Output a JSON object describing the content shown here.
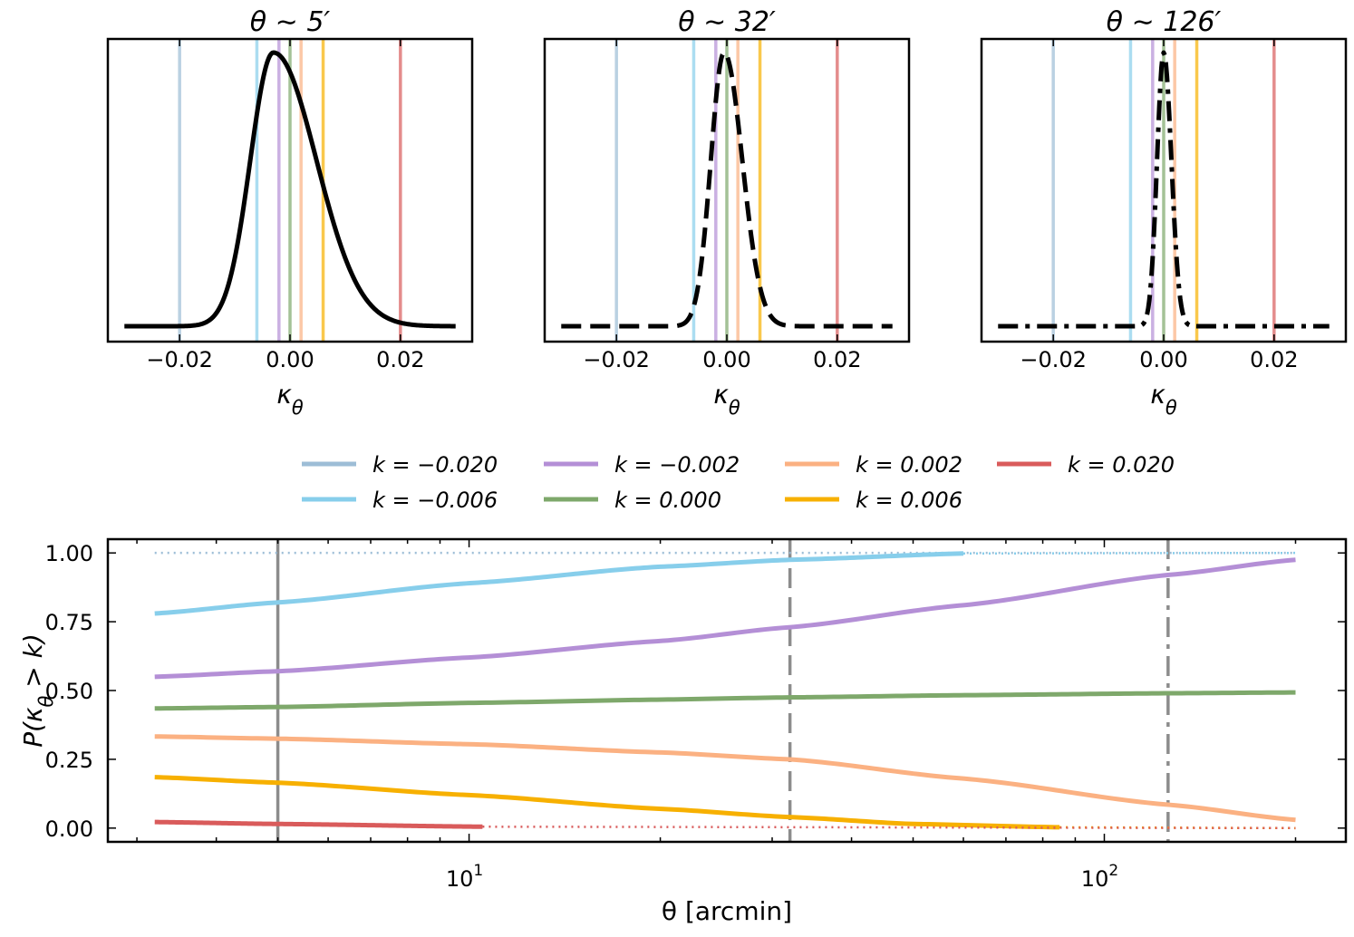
{
  "colors": {
    "k_m0.020": "#9dbdd6",
    "k_m0.006": "#87ceeb",
    "k_m0.002": "#b48fd6",
    "k_0.000": "#7ea86b",
    "k_0.002": "#fbb182",
    "k_0.006": "#f7b000",
    "k_0.020": "#d95b5b",
    "pdf_line": "#000000",
    "ref_line": "#8c8c8c"
  },
  "chart_data": [
    {
      "type": "line",
      "title": "θ ∼ 5′",
      "xlabel": "κ_θ",
      "ylabel": "",
      "xlim": [
        -0.033,
        0.033
      ],
      "xticks": [
        -0.02,
        0.0,
        0.02
      ],
      "xtick_labels": [
        "−0.02",
        "0.00",
        "0.02"
      ],
      "line_style": "solid",
      "pdf": {
        "mode": -0.003,
        "sigma_left": 0.0042,
        "sigma_right": 0.0078,
        "x_range": [
          -0.03,
          0.03
        ]
      },
      "vlines": [
        -0.02,
        -0.006,
        -0.002,
        0.0,
        0.002,
        0.006,
        0.02
      ]
    },
    {
      "type": "line",
      "title": "θ ∼ 32′",
      "xlabel": "κ_θ",
      "ylabel": "",
      "xlim": [
        -0.033,
        0.033
      ],
      "xticks": [
        -0.02,
        0.0,
        0.02
      ],
      "xtick_labels": [
        "−0.02",
        "0.00",
        "0.02"
      ],
      "line_style": "dashed",
      "pdf": {
        "mode": -0.0005,
        "sigma_left": 0.0024,
        "sigma_right": 0.0033,
        "x_range": [
          -0.03,
          0.03
        ]
      },
      "vlines": [
        -0.02,
        -0.006,
        -0.002,
        0.0,
        0.002,
        0.006,
        0.02
      ]
    },
    {
      "type": "line",
      "title": "θ ∼ 126′",
      "xlabel": "κ_θ",
      "ylabel": "",
      "xlim": [
        -0.033,
        0.033
      ],
      "xticks": [
        -0.02,
        0.0,
        0.02
      ],
      "xtick_labels": [
        "−0.02",
        "0.00",
        "0.02"
      ],
      "line_style": "dashdot",
      "pdf": {
        "mode": 0.0,
        "sigma_left": 0.0012,
        "sigma_right": 0.0014,
        "x_range": [
          -0.03,
          0.03
        ]
      },
      "vlines": [
        -0.02,
        -0.006,
        -0.002,
        0.0,
        0.002,
        0.006,
        0.02
      ]
    },
    {
      "type": "line",
      "title": "",
      "xlabel": "θ [arcmin]",
      "ylabel": "P(κ_θ > k)",
      "xscale": "log",
      "xlim": [
        2.7,
        240
      ],
      "ylim": [
        -0.05,
        1.05
      ],
      "yticks": [
        0.0,
        0.25,
        0.5,
        0.75,
        1.0
      ],
      "ytick_labels": [
        "0.00",
        "0.25",
        "0.50",
        "0.75",
        "1.00"
      ],
      "xtick_major": [
        10,
        100
      ],
      "xtick_labels": [
        "10",
        "1",
        "10",
        "2"
      ],
      "reference_thetas": [
        {
          "theta": 5,
          "style": "solid"
        },
        {
          "theta": 32,
          "style": "dashed"
        },
        {
          "theta": 126,
          "style": "dashdot"
        }
      ],
      "series": [
        {
          "name": "k = −0.020",
          "x": [
            3.2,
            200
          ],
          "y": [
            1.0,
            1.0
          ],
          "solid_until": 3.2
        },
        {
          "name": "k = −0.006",
          "x": [
            3.2,
            5,
            10,
            20,
            32,
            60,
            200
          ],
          "y": [
            0.78,
            0.82,
            0.89,
            0.95,
            0.975,
            0.998,
            1.0
          ],
          "solid_until": 60
        },
        {
          "name": "k = −0.002",
          "x": [
            3.2,
            5,
            10,
            20,
            32,
            60,
            126,
            200
          ],
          "y": [
            0.55,
            0.57,
            0.62,
            0.68,
            0.73,
            0.81,
            0.92,
            0.975
          ],
          "solid_until": 200
        },
        {
          "name": "k = 0.000",
          "x": [
            3.2,
            5,
            10,
            20,
            32,
            60,
            126,
            200
          ],
          "y": [
            0.435,
            0.44,
            0.455,
            0.467,
            0.475,
            0.483,
            0.49,
            0.493
          ],
          "solid_until": 200
        },
        {
          "name": "k = 0.002",
          "x": [
            3.2,
            5,
            10,
            20,
            32,
            60,
            126,
            200
          ],
          "y": [
            0.333,
            0.325,
            0.305,
            0.275,
            0.25,
            0.18,
            0.085,
            0.03
          ],
          "solid_until": 200
        },
        {
          "name": "k = 0.006",
          "x": [
            3.2,
            5,
            10,
            20,
            32,
            50,
            85,
            200
          ],
          "y": [
            0.185,
            0.165,
            0.12,
            0.07,
            0.04,
            0.015,
            0.003,
            0.0
          ],
          "solid_until": 85
        },
        {
          "name": "k = 0.020",
          "x": [
            3.2,
            5,
            10.5,
            200
          ],
          "y": [
            0.022,
            0.015,
            0.005,
            0.0
          ],
          "solid_until": 10.5
        }
      ]
    }
  ],
  "legend": {
    "placement": "center, between rows",
    "entries": [
      {
        "label": "k = −0.020",
        "color_key": "k_m0.020"
      },
      {
        "label": "k = −0.006",
        "color_key": "k_m0.006"
      },
      {
        "label": "k = −0.002",
        "color_key": "k_m0.002"
      },
      {
        "label": "k = 0.000",
        "color_key": "k_0.000"
      },
      {
        "label": "k = 0.002",
        "color_key": "k_0.002"
      },
      {
        "label": "k = 0.006",
        "color_key": "k_0.006"
      },
      {
        "label": "k = 0.020",
        "color_key": "k_0.020"
      }
    ]
  }
}
